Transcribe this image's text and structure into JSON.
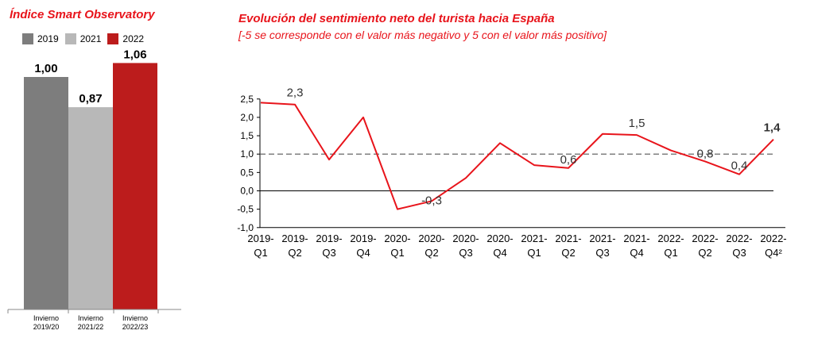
{
  "colors": {
    "accent": "#e8141b",
    "line": "#e8141b",
    "bar_2019": "#7d7d7d",
    "bar_2021": "#b8b8b8",
    "bar_2022": "#bc1c1c"
  },
  "chart_data": [
    {
      "type": "bar",
      "title": "Índice Smart Observatory",
      "legend": [
        "2019",
        "2021",
        "2022"
      ],
      "legend_placement": "top",
      "categories": [
        [
          "Invierno",
          "2019/20"
        ],
        [
          "Invierno",
          "2021/22"
        ],
        [
          "Invierno",
          "2022/23"
        ]
      ],
      "values": [
        1.0,
        0.87,
        1.06
      ],
      "value_labels": [
        "1,00",
        "0,87",
        "1,06"
      ],
      "ylim": [
        0,
        1.2
      ],
      "grid": false
    },
    {
      "type": "line",
      "title": "Evolución del sentimiento neto del turista hacia España",
      "subtitle": "[-5 se corresponde con el valor más negativo y 5 con el valor más positivo]",
      "x": [
        [
          "2019-",
          "Q1"
        ],
        [
          "2019-",
          "Q2"
        ],
        [
          "2019-",
          "Q3"
        ],
        [
          "2019-",
          "Q4"
        ],
        [
          "2020-",
          "Q1"
        ],
        [
          "2020-",
          "Q2"
        ],
        [
          "2020-",
          "Q3"
        ],
        [
          "2020-",
          "Q4"
        ],
        [
          "2021-",
          "Q1"
        ],
        [
          "2021-",
          "Q2"
        ],
        [
          "2021-",
          "Q3"
        ],
        [
          "2021-",
          "Q4"
        ],
        [
          "2022-",
          "Q1"
        ],
        [
          "2022-",
          "Q2"
        ],
        [
          "2022-",
          "Q3"
        ],
        [
          "2022-",
          "Q4²"
        ]
      ],
      "values": [
        2.4,
        2.35,
        0.85,
        2.0,
        -0.5,
        -0.28,
        0.35,
        1.3,
        0.7,
        0.62,
        1.55,
        1.52,
        1.1,
        0.8,
        0.45,
        1.4
      ],
      "annotations": [
        {
          "index": 1,
          "text": "2,3",
          "bold": false
        },
        {
          "index": 5,
          "text": "-0,3",
          "bold": false
        },
        {
          "index": 9,
          "text": "0,6",
          "bold": false
        },
        {
          "index": 11,
          "text": "1,5",
          "bold": false
        },
        {
          "index": 13,
          "text": "0,8",
          "bold": false
        },
        {
          "index": 14,
          "text": "0,4",
          "bold": false
        },
        {
          "index": 15,
          "text": "1,4",
          "bold": true
        }
      ],
      "yticks": [
        2.5,
        2.0,
        1.5,
        1.0,
        0.5,
        0.0,
        -0.5,
        -1.0
      ],
      "ytick_labels": [
        "2,5",
        "2,0",
        "1,5",
        "1,0",
        "0,5",
        "0,0",
        "-0,5",
        "-1,0"
      ],
      "ylim": [
        -1.0,
        2.5
      ],
      "reference_line": 1.0,
      "grid": false
    }
  ]
}
